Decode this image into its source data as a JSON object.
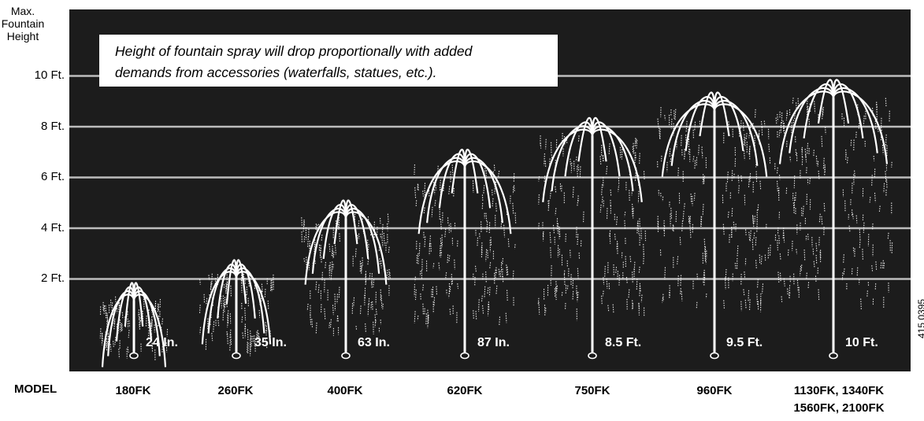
{
  "y_axis_label": "Max. Fountain Height",
  "note": {
    "line1": "Height of fountain spray will drop proportionally with added",
    "line2": "demands from accessories (waterfalls, statues, etc.)."
  },
  "model_heading": "MODEL",
  "reference_code": "415 0395",
  "colors": {
    "background": "#1c1c1c",
    "gridline": "#bdbdbd",
    "spray": "#ffffff",
    "page": "#ffffff"
  },
  "chart_data": {
    "type": "bar",
    "ylabel": "Max. Fountain Height",
    "y_ticks": [
      "2 Ft.",
      "4 Ft.",
      "6 Ft.",
      "8 Ft.",
      "10 Ft."
    ],
    "y_tick_values_ft": [
      2,
      4,
      6,
      8,
      10
    ],
    "grid": true,
    "categories": [
      "180FK",
      "260FK",
      "400FK",
      "620FK",
      "750FK",
      "960FK",
      "1130FK, 1340FK 1560FK, 2100FK"
    ],
    "values_ft": [
      2,
      2.9,
      5.25,
      7.25,
      8.5,
      9.5,
      10
    ],
    "height_labels": [
      "24 In.",
      "35 In.",
      "63 In.",
      "87 In.",
      "8.5 Ft.",
      "9.5 Ft.",
      "10 Ft."
    ],
    "models": [
      {
        "line1": "180FK",
        "line2": ""
      },
      {
        "line1": "260FK",
        "line2": ""
      },
      {
        "line1": "400FK",
        "line2": ""
      },
      {
        "line1": "620FK",
        "line2": ""
      },
      {
        "line1": "750FK",
        "line2": ""
      },
      {
        "line1": "960FK",
        "line2": ""
      },
      {
        "line1": "1130FK, 1340FK",
        "line2": "1560FK, 2100FK"
      }
    ]
  }
}
